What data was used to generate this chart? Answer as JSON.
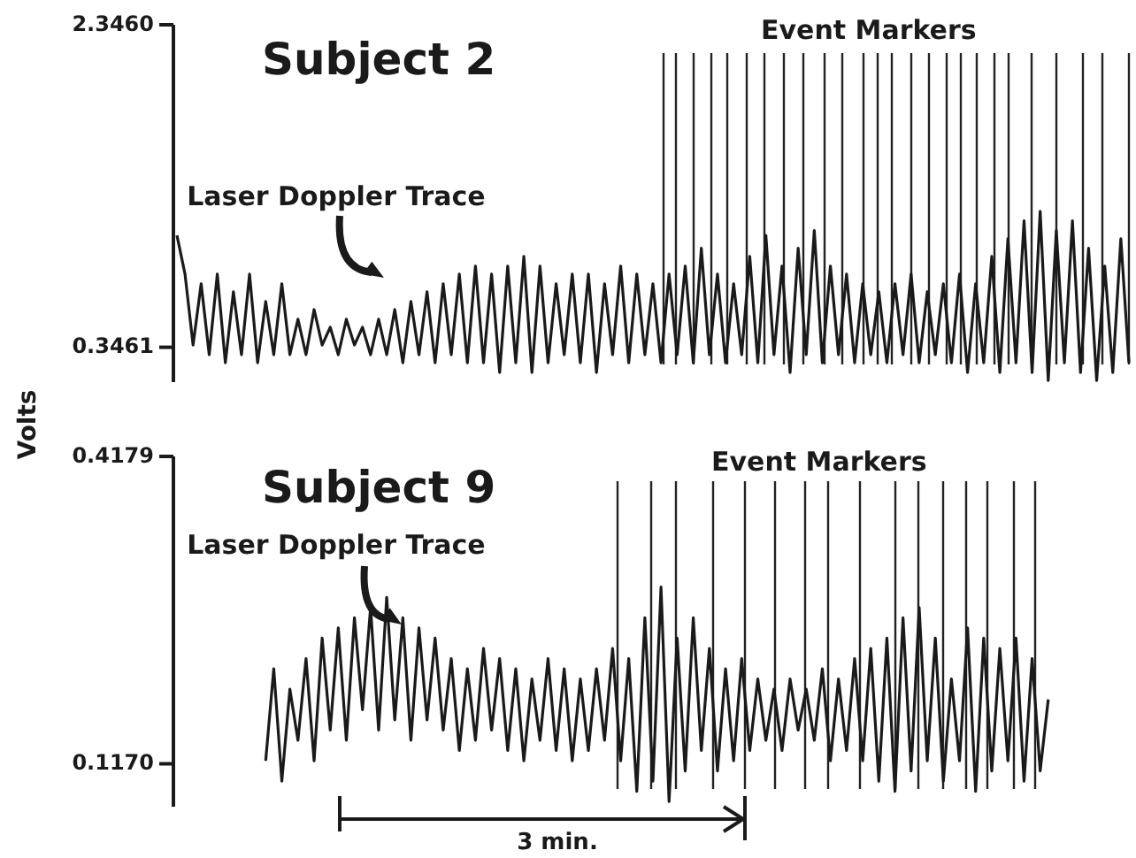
{
  "chart_data": [
    {
      "type": "line",
      "title": "Subject 2",
      "ylabel": "Volts",
      "ylim": [
        0.13,
        2.346
      ],
      "yticks": [
        {
          "value": 2.346,
          "label": "2.3460"
        },
        {
          "value": 0.3461,
          "label": "0.3461"
        }
      ],
      "tick_labels": "y",
      "annotations": [
        "Event Markers",
        "Laser Doppler Trace"
      ],
      "categories": [
        null,
        null,
        null,
        null,
        null,
        null,
        null,
        null,
        null,
        null,
        null,
        null,
        null,
        null,
        null,
        null,
        null,
        null,
        null,
        null,
        null,
        null,
        null,
        null,
        null,
        null,
        null,
        null,
        null,
        null,
        null,
        null,
        null,
        null,
        null,
        null,
        null,
        null,
        null,
        null,
        null,
        null,
        null,
        null,
        null,
        null,
        null,
        null,
        null,
        null,
        null,
        null,
        null,
        null,
        null,
        null,
        null,
        null,
        null,
        null,
        null,
        null,
        null,
        null,
        null,
        null,
        null,
        null,
        null,
        null,
        null,
        null,
        null,
        null,
        null,
        null,
        null,
        null,
        null,
        null,
        null,
        null,
        null,
        null,
        null,
        null,
        null,
        null,
        null,
        null,
        null,
        null,
        null,
        null,
        null,
        null,
        null,
        null,
        null,
        null,
        null,
        null,
        null,
        null,
        null,
        null,
        null,
        null,
        null,
        null,
        null,
        null,
        null,
        null,
        null,
        null,
        null,
        null,
        null
      ],
      "series": [
        {
          "color": "#1a1a1a",
          "values": [
            1.04,
            0.8,
            0.36,
            0.74,
            0.3,
            0.8,
            0.25,
            0.69,
            0.3,
            0.8,
            0.25,
            0.63,
            0.3,
            0.74,
            0.3,
            0.52,
            0.3,
            0.58,
            0.36,
            0.47,
            0.3,
            0.52,
            0.36,
            0.47,
            0.3,
            0.52,
            0.3,
            0.58,
            0.25,
            0.63,
            0.3,
            0.69,
            0.25,
            0.74,
            0.3,
            0.8,
            0.25,
            0.85,
            0.25,
            0.8,
            0.19,
            0.85,
            0.25,
            0.91,
            0.19,
            0.85,
            0.25,
            0.74,
            0.3,
            0.8,
            0.25,
            0.8,
            0.19,
            0.74,
            0.3,
            0.85,
            0.25,
            0.8,
            0.3,
            0.74,
            0.25,
            0.8,
            0.3,
            0.85,
            0.25,
            0.96,
            0.3,
            0.8,
            0.25,
            0.74,
            0.3,
            0.91,
            0.25,
            1.04,
            0.3,
            0.85,
            0.19,
            0.96,
            0.3,
            1.07,
            0.25,
            0.85,
            0.3,
            0.8,
            0.25,
            0.74,
            0.3,
            0.69,
            0.25,
            0.74,
            0.3,
            0.8,
            0.25,
            0.69,
            0.3,
            0.74,
            0.25,
            0.8,
            0.19,
            0.74,
            0.25,
            0.91,
            0.19,
            1.02,
            0.25,
            1.13,
            0.19,
            1.19,
            0.14,
            1.07,
            0.25,
            1.13,
            0.19,
            0.96,
            0.14,
            0.85,
            0.19,
            1.02,
            0.25
          ]
        }
      ]
    },
    {
      "type": "line",
      "title": "Subject 9",
      "ylim": [
        0.075,
        0.4179
      ],
      "yticks": [
        {
          "value": 0.4179,
          "label": "0.4179"
        },
        {
          "value": 0.117,
          "label": "0.1170"
        }
      ],
      "tick_labels": "y",
      "annotations": [
        "Event Markers",
        "Laser Doppler Trace",
        "3 min."
      ],
      "categories": [
        null,
        null,
        null,
        null,
        null,
        null,
        null,
        null,
        null,
        null,
        null,
        null,
        null,
        null,
        null,
        null,
        null,
        null,
        null,
        null,
        null,
        null,
        null,
        null,
        null,
        null,
        null,
        null,
        null,
        null,
        null,
        null,
        null,
        null,
        null,
        null,
        null,
        null,
        null,
        null,
        null,
        null,
        null,
        null,
        null,
        null,
        null,
        null,
        null,
        null,
        null,
        null,
        null,
        null,
        null,
        null,
        null,
        null,
        null,
        null,
        null,
        null,
        null,
        null,
        null,
        null,
        null,
        null,
        null,
        null,
        null,
        null,
        null,
        null,
        null,
        null,
        null,
        null,
        null,
        null,
        null,
        null,
        null,
        null,
        null,
        null,
        null,
        null,
        null,
        null,
        null,
        null,
        null,
        null,
        null,
        null,
        null,
        null,
        null,
        null,
        null,
        null,
        null,
        null,
        null,
        null,
        null,
        null,
        null,
        null,
        null,
        null,
        null,
        null,
        null,
        null,
        null,
        null,
        null
      ],
      "series": [
        {
          "color": "#1a1a1a",
          "values": [
            null,
            null,
            null,
            null,
            null,
            null,
            null,
            null,
            null,
            null,
            null,
            0.12,
            0.21,
            0.1,
            0.19,
            0.14,
            0.22,
            0.12,
            0.24,
            0.15,
            0.25,
            0.14,
            0.26,
            0.17,
            0.27,
            0.15,
            0.28,
            0.16,
            0.26,
            0.14,
            0.25,
            0.16,
            0.24,
            0.15,
            0.22,
            0.13,
            0.21,
            0.14,
            0.23,
            0.15,
            0.22,
            0.13,
            0.21,
            0.12,
            0.2,
            0.14,
            0.22,
            0.13,
            0.21,
            0.12,
            0.2,
            0.13,
            0.21,
            0.14,
            0.23,
            0.12,
            0.22,
            0.09,
            0.26,
            0.1,
            0.29,
            0.08,
            0.24,
            0.11,
            0.26,
            0.13,
            0.23,
            0.11,
            0.21,
            0.12,
            0.22,
            0.13,
            0.2,
            0.14,
            0.19,
            0.13,
            0.2,
            0.15,
            0.19,
            0.14,
            0.21,
            0.12,
            0.2,
            0.13,
            0.22,
            0.12,
            0.23,
            0.1,
            0.24,
            0.09,
            0.26,
            0.11,
            0.27,
            0.12,
            0.24,
            0.1,
            0.2,
            0.12,
            0.25,
            0.09,
            0.24,
            0.11,
            0.23,
            0.12,
            0.24,
            0.1,
            0.22,
            0.11,
            0.18,
            null,
            null,
            null,
            null,
            null,
            null,
            null,
            null,
            null,
            null
          ]
        }
      ]
    }
  ]
}
